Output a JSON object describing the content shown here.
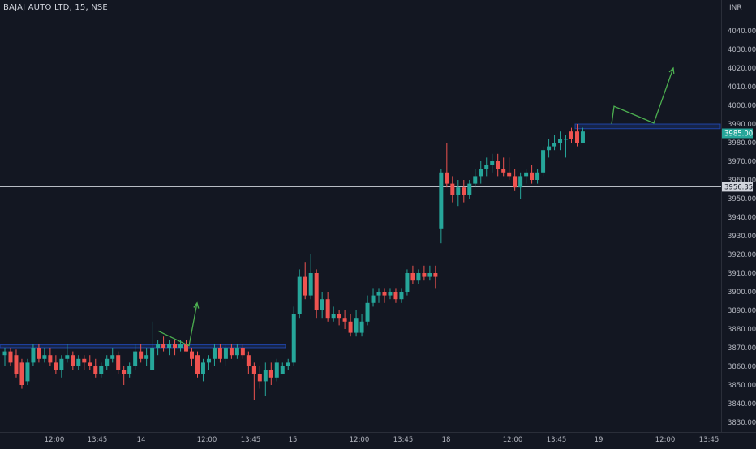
{
  "header": {
    "symbol": "BAJAJ AUTO LTD, 15, NSE"
  },
  "chart_data": {
    "type": "candlestick",
    "currency": "INR",
    "ylim": [
      3826,
      4046
    ],
    "y_ticks": [
      3830,
      3840,
      3850,
      3860,
      3870,
      3880,
      3890,
      3900,
      3910,
      3920,
      3930,
      3940,
      3950,
      3960,
      3970,
      3980,
      3990,
      4000,
      4010,
      4020,
      4030,
      4040
    ],
    "x_ticks": [
      "12:00",
      "13:45",
      "14",
      "12:00",
      "13:45",
      "15",
      "12:00",
      "13:45",
      "18",
      "12:00",
      "13:45",
      "19",
      "12:00",
      "13:45"
    ],
    "last_price": {
      "value": 3985.0,
      "label": "3985.00",
      "color": "#26a69a"
    },
    "horizontal_line": {
      "value": 3956.35,
      "label": "3956.35",
      "color": "#d1d4dc"
    },
    "zones": [
      {
        "day": 0,
        "from": 3870,
        "to": 3871.5,
        "color": "#2962ff"
      },
      {
        "day": 3,
        "from": 3987.5,
        "to": 3990,
        "color": "#2962ff"
      }
    ],
    "arrows": [
      {
        "points": [
          [
            1,
            3879
          ],
          [
            2,
            3871
          ],
          [
            3,
            3894
          ]
        ],
        "color": "#4caf50"
      },
      {
        "points": [
          [
            4,
            3990
          ],
          [
            5,
            3999.5
          ],
          [
            6,
            3990.5
          ],
          [
            7,
            4020
          ]
        ],
        "color": "#4caf50"
      }
    ],
    "colors": {
      "up": "#26a69a",
      "down": "#ef5350"
    },
    "candles": [
      {
        "o": 3866,
        "h": 3870,
        "l": 3860,
        "c": 3868
      },
      {
        "o": 3868,
        "h": 3870,
        "l": 3860,
        "c": 3862
      },
      {
        "o": 3866,
        "h": 3869,
        "l": 3854,
        "c": 3856
      },
      {
        "o": 3862,
        "h": 3864,
        "l": 3848,
        "c": 3850
      },
      {
        "o": 3852,
        "h": 3864,
        "l": 3850,
        "c": 3862
      },
      {
        "o": 3862,
        "h": 3872,
        "l": 3860,
        "c": 3870
      },
      {
        "o": 3870,
        "h": 3872,
        "l": 3862,
        "c": 3864
      },
      {
        "o": 3864,
        "h": 3870,
        "l": 3862,
        "c": 3866
      },
      {
        "o": 3866,
        "h": 3870,
        "l": 3860,
        "c": 3862
      },
      {
        "o": 3862,
        "h": 3866,
        "l": 3856,
        "c": 3858
      },
      {
        "o": 3858,
        "h": 3866,
        "l": 3854,
        "c": 3864
      },
      {
        "o": 3864,
        "h": 3872,
        "l": 3862,
        "c": 3866
      },
      {
        "o": 3866,
        "h": 3868,
        "l": 3858,
        "c": 3860
      },
      {
        "o": 3860,
        "h": 3866,
        "l": 3858,
        "c": 3864
      },
      {
        "o": 3864,
        "h": 3866,
        "l": 3858,
        "c": 3862
      },
      {
        "o": 3862,
        "h": 3866,
        "l": 3858,
        "c": 3860
      },
      {
        "o": 3860,
        "h": 3864,
        "l": 3854,
        "c": 3856
      },
      {
        "o": 3856,
        "h": 3862,
        "l": 3854,
        "c": 3860
      },
      {
        "o": 3860,
        "h": 3866,
        "l": 3858,
        "c": 3864
      },
      {
        "o": 3864,
        "h": 3870,
        "l": 3862,
        "c": 3866
      },
      {
        "o": 3866,
        "h": 3868,
        "l": 3856,
        "c": 3858
      },
      {
        "o": 3858,
        "h": 3860,
        "l": 3850,
        "c": 3856
      },
      {
        "o": 3856,
        "h": 3862,
        "l": 3854,
        "c": 3860
      },
      {
        "o": 3860,
        "h": 3872,
        "l": 3858,
        "c": 3868
      },
      {
        "o": 3868,
        "h": 3872,
        "l": 3862,
        "c": 3864
      },
      {
        "o": 3864,
        "h": 3870,
        "l": 3860,
        "c": 3866
      },
      {
        "o": 3858,
        "h": 3884,
        "l": 3858,
        "c": 3870
      },
      {
        "o": 3870,
        "h": 3874,
        "l": 3866,
        "c": 3872
      },
      {
        "o": 3872,
        "h": 3876,
        "l": 3868,
        "c": 3870
      },
      {
        "o": 3870,
        "h": 3874,
        "l": 3866,
        "c": 3872
      },
      {
        "o": 3872,
        "h": 3874,
        "l": 3866,
        "c": 3870
      },
      {
        "o": 3870,
        "h": 3874,
        "l": 3868,
        "c": 3872
      },
      {
        "o": 3872,
        "h": 3874,
        "l": 3868,
        "c": 3868
      },
      {
        "o": 3868,
        "h": 3870,
        "l": 3860,
        "c": 3864
      },
      {
        "o": 3866,
        "h": 3868,
        "l": 3854,
        "c": 3856
      },
      {
        "o": 3856,
        "h": 3864,
        "l": 3852,
        "c": 3862
      },
      {
        "o": 3862,
        "h": 3866,
        "l": 3858,
        "c": 3864
      },
      {
        "o": 3864,
        "h": 3872,
        "l": 3860,
        "c": 3870
      },
      {
        "o": 3870,
        "h": 3872,
        "l": 3862,
        "c": 3864
      },
      {
        "o": 3864,
        "h": 3872,
        "l": 3860,
        "c": 3870
      },
      {
        "o": 3870,
        "h": 3872,
        "l": 3864,
        "c": 3866
      },
      {
        "o": 3866,
        "h": 3872,
        "l": 3864,
        "c": 3870
      },
      {
        "o": 3870,
        "h": 3872,
        "l": 3864,
        "c": 3866
      },
      {
        "o": 3866,
        "h": 3868,
        "l": 3856,
        "c": 3860
      },
      {
        "o": 3860,
        "h": 3862,
        "l": 3842,
        "c": 3856
      },
      {
        "o": 3856,
        "h": 3860,
        "l": 3848,
        "c": 3852
      },
      {
        "o": 3852,
        "h": 3862,
        "l": 3844,
        "c": 3858
      },
      {
        "o": 3858,
        "h": 3862,
        "l": 3850,
        "c": 3854
      },
      {
        "o": 3854,
        "h": 3864,
        "l": 3852,
        "c": 3862
      },
      {
        "o": 3856,
        "h": 3862,
        "l": 3856,
        "c": 3860
      },
      {
        "o": 3860,
        "h": 3864,
        "l": 3858,
        "c": 3862
      },
      {
        "o": 3862,
        "h": 3892,
        "l": 3860,
        "c": 3888
      },
      {
        "o": 3888,
        "h": 3912,
        "l": 3886,
        "c": 3908
      },
      {
        "o": 3908,
        "h": 3916,
        "l": 3896,
        "c": 3898
      },
      {
        "o": 3898,
        "h": 3920,
        "l": 3896,
        "c": 3910
      },
      {
        "o": 3910,
        "h": 3912,
        "l": 3886,
        "c": 3890
      },
      {
        "o": 3890,
        "h": 3900,
        "l": 3886,
        "c": 3896
      },
      {
        "o": 3896,
        "h": 3900,
        "l": 3884,
        "c": 3886
      },
      {
        "o": 3886,
        "h": 3892,
        "l": 3884,
        "c": 3888
      },
      {
        "o": 3888,
        "h": 3890,
        "l": 3882,
        "c": 3886
      },
      {
        "o": 3886,
        "h": 3890,
        "l": 3880,
        "c": 3884
      },
      {
        "o": 3884,
        "h": 3888,
        "l": 3876,
        "c": 3878
      },
      {
        "o": 3878,
        "h": 3890,
        "l": 3876,
        "c": 3886
      },
      {
        "o": 3878,
        "h": 3888,
        "l": 3876,
        "c": 3884
      },
      {
        "o": 3884,
        "h": 3898,
        "l": 3882,
        "c": 3894
      },
      {
        "o": 3894,
        "h": 3902,
        "l": 3892,
        "c": 3898
      },
      {
        "o": 3898,
        "h": 3902,
        "l": 3894,
        "c": 3900
      },
      {
        "o": 3900,
        "h": 3902,
        "l": 3894,
        "c": 3898
      },
      {
        "o": 3898,
        "h": 3902,
        "l": 3896,
        "c": 3900
      },
      {
        "o": 3900,
        "h": 3902,
        "l": 3894,
        "c": 3896
      },
      {
        "o": 3896,
        "h": 3902,
        "l": 3894,
        "c": 3900
      },
      {
        "o": 3900,
        "h": 3912,
        "l": 3898,
        "c": 3910
      },
      {
        "o": 3910,
        "h": 3914,
        "l": 3904,
        "c": 3906
      },
      {
        "o": 3906,
        "h": 3912,
        "l": 3904,
        "c": 3910
      },
      {
        "o": 3910,
        "h": 3914,
        "l": 3906,
        "c": 3908
      },
      {
        "o": 3908,
        "h": 3914,
        "l": 3906,
        "c": 3910
      },
      {
        "o": 3910,
        "h": 3914,
        "l": 3902,
        "c": 3908
      },
      {
        "o": 3934,
        "h": 3966,
        "l": 3926,
        "c": 3964
      },
      {
        "o": 3964,
        "h": 3980,
        "l": 3956,
        "c": 3958
      },
      {
        "o": 3958,
        "h": 3962,
        "l": 3948,
        "c": 3952
      },
      {
        "o": 3952,
        "h": 3960,
        "l": 3946,
        "c": 3956
      },
      {
        "o": 3956,
        "h": 3960,
        "l": 3948,
        "c": 3952
      },
      {
        "o": 3952,
        "h": 3960,
        "l": 3950,
        "c": 3958
      },
      {
        "o": 3958,
        "h": 3966,
        "l": 3956,
        "c": 3962
      },
      {
        "o": 3962,
        "h": 3970,
        "l": 3958,
        "c": 3966
      },
      {
        "o": 3966,
        "h": 3972,
        "l": 3962,
        "c": 3968
      },
      {
        "o": 3968,
        "h": 3974,
        "l": 3964,
        "c": 3970
      },
      {
        "o": 3970,
        "h": 3974,
        "l": 3962,
        "c": 3966
      },
      {
        "o": 3966,
        "h": 3972,
        "l": 3962,
        "c": 3964
      },
      {
        "o": 3964,
        "h": 3972,
        "l": 3960,
        "c": 3962
      },
      {
        "o": 3962,
        "h": 3966,
        "l": 3954,
        "c": 3956
      },
      {
        "o": 3956,
        "h": 3964,
        "l": 3950,
        "c": 3962
      },
      {
        "o": 3962,
        "h": 3966,
        "l": 3958,
        "c": 3964
      },
      {
        "o": 3964,
        "h": 3968,
        "l": 3958,
        "c": 3960
      },
      {
        "o": 3960,
        "h": 3966,
        "l": 3958,
        "c": 3964
      },
      {
        "o": 3964,
        "h": 3978,
        "l": 3962,
        "c": 3976
      },
      {
        "o": 3976,
        "h": 3982,
        "l": 3972,
        "c": 3978
      },
      {
        "o": 3978,
        "h": 3984,
        "l": 3976,
        "c": 3980
      },
      {
        "o": 3980,
        "h": 3986,
        "l": 3976,
        "c": 3982
      },
      {
        "o": 3982,
        "h": 3984,
        "l": 3972,
        "c": 3982
      },
      {
        "o": 3986,
        "h": 3988,
        "l": 3980,
        "c": 3982
      },
      {
        "o": 3986,
        "h": 3990,
        "l": 3978,
        "c": 3980
      },
      {
        "o": 3980,
        "h": 3988,
        "l": 3980,
        "c": 3986
      }
    ]
  }
}
